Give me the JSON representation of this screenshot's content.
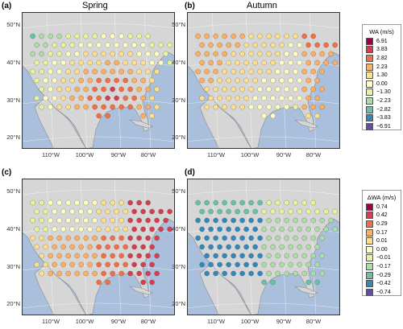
{
  "panels": [
    {
      "letter": "(a)",
      "title": "Spring",
      "pattern": "spring"
    },
    {
      "letter": "(b)",
      "title": "Autumn",
      "pattern": "autumn"
    },
    {
      "letter": "(c)",
      "title": "",
      "pattern": "spring_delta"
    },
    {
      "letter": "(d)",
      "title": "",
      "pattern": "autumn_delta"
    }
  ],
  "lat_labels": [
    "50°N",
    "40°N",
    "30°N",
    "20°N"
  ],
  "lon_labels": [
    "110°W",
    "100°W",
    "90°W",
    "80°W"
  ],
  "legend_top": {
    "title": "WA (m/s)",
    "labels": [
      "6.91",
      "3.83",
      "2.82",
      "2.23",
      "1.30",
      "0.00",
      "−1.30",
      "−2.23",
      "−2.82",
      "−3.83",
      "−6.91"
    ]
  },
  "legend_bottom": {
    "title": "ΔWA (m/s)",
    "labels": [
      "0.74",
      "0.42",
      "0.29",
      "0.17",
      "0.01",
      "0.00",
      "−0.01",
      "−0.17",
      "−0.29",
      "−0.42",
      "−0.74"
    ]
  },
  "colors": {
    "ocean": "#a9bfdc",
    "land": "#d6d6d6",
    "coast": "#8a8a8a",
    "scale": [
      "#9e0142",
      "#d53e4f",
      "#f46d43",
      "#fdae61",
      "#fee08b",
      "#ffffbf",
      "#e6f598",
      "#abdda4",
      "#66c2a5",
      "#3288bd",
      "#5e4fa2"
    ]
  }
}
